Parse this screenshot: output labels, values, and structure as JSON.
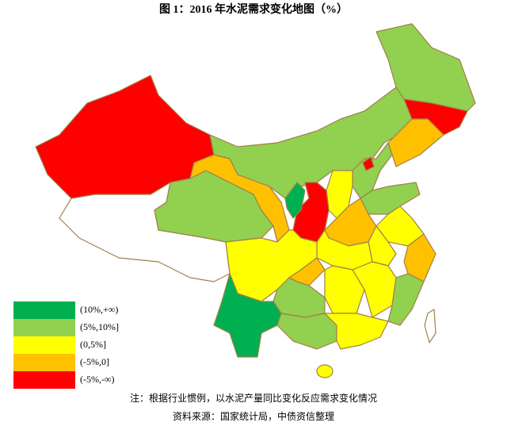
{
  "title": "图 1：2016 年水泥需求变化地图（%）",
  "legend": [
    {
      "label": "(10%,+∞)",
      "color": "#00b050"
    },
    {
      "label": "(5%,10%]",
      "color": "#92d050"
    },
    {
      "label": "(0,5%]",
      "color": "#ffff00"
    },
    {
      "label": "(-5%,0]",
      "color": "#ffc000"
    },
    {
      "label": "(-5%,-∞)",
      "color": "#ff0000"
    }
  ],
  "note": "注：根据行业惯例，以水泥产量同比变化反应需求变化情况",
  "source": "资料来源：国家统计局，中债资信整理"
}
